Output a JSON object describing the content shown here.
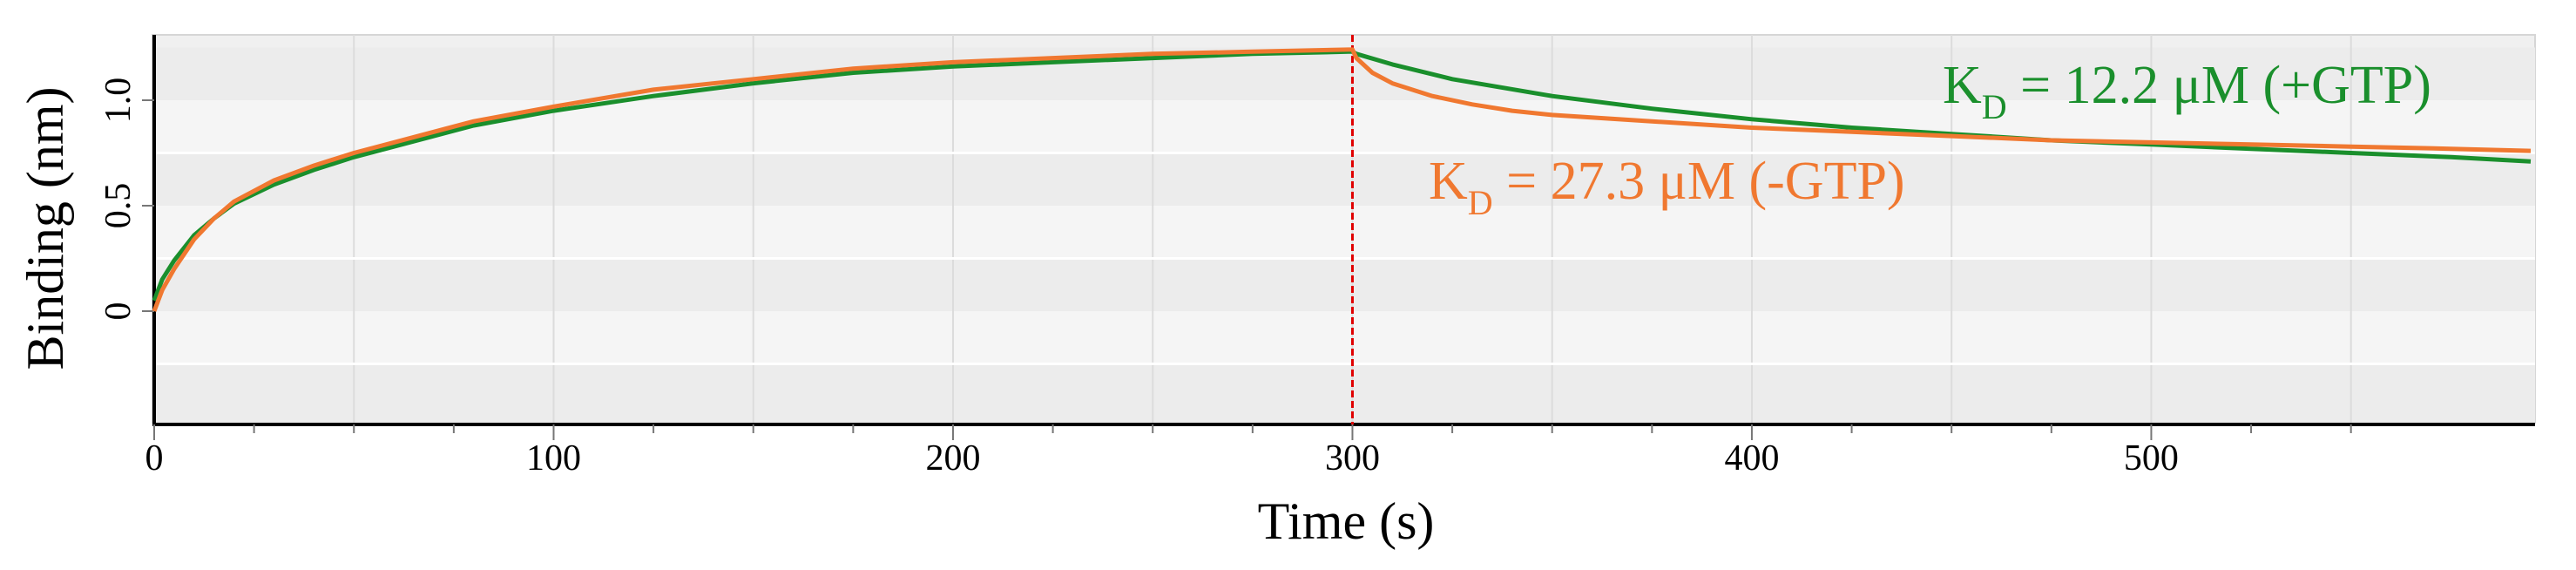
{
  "chart_data": {
    "type": "line",
    "title": "",
    "xlabel": "Time (s)",
    "ylabel": "Binding (nm)",
    "xlim": [
      0,
      595
    ],
    "ylim": [
      -0.55,
      1.25
    ],
    "x_ticks": [
      0,
      100,
      200,
      300,
      400,
      500
    ],
    "y_ticks": [
      0,
      0.5,
      1.0
    ],
    "x_tick_labels": [
      "0",
      "100",
      "200",
      "300",
      "400",
      "500"
    ],
    "y_tick_labels": [
      "0",
      "0.5",
      "1.0"
    ],
    "grid": true,
    "legend": "none",
    "marker_line_x": 300,
    "colors": {
      "plus_gtp": "#1a8f2c",
      "minus_gtp": "#f07830",
      "marker": "#e00000",
      "plot_bg": "#f0f0f0"
    },
    "series": [
      {
        "key": "plus_gtp",
        "color": "#1a8f2c",
        "x": [
          0,
          2,
          5,
          10,
          15,
          20,
          30,
          40,
          50,
          60,
          80,
          100,
          125,
          150,
          175,
          200,
          225,
          250,
          275,
          299,
          300,
          301,
          310,
          325,
          350,
          375,
          400,
          425,
          450,
          475,
          500,
          525,
          550,
          575,
          595
        ],
        "y": [
          0.05,
          0.15,
          0.24,
          0.36,
          0.44,
          0.51,
          0.6,
          0.67,
          0.73,
          0.78,
          0.88,
          0.95,
          1.02,
          1.08,
          1.13,
          1.16,
          1.18,
          1.2,
          1.22,
          1.23,
          1.23,
          1.22,
          1.17,
          1.1,
          1.02,
          0.96,
          0.91,
          0.87,
          0.84,
          0.81,
          0.79,
          0.77,
          0.75,
          0.73,
          0.71
        ]
      },
      {
        "key": "minus_gtp",
        "color": "#f07830",
        "x": [
          0,
          2,
          5,
          10,
          15,
          20,
          30,
          40,
          50,
          60,
          80,
          100,
          125,
          150,
          175,
          200,
          225,
          250,
          275,
          299,
          300,
          301,
          305,
          310,
          320,
          330,
          340,
          350,
          375,
          400,
          425,
          450,
          475,
          500,
          525,
          550,
          575,
          595
        ],
        "y": [
          0.0,
          0.1,
          0.2,
          0.34,
          0.44,
          0.52,
          0.62,
          0.69,
          0.75,
          0.8,
          0.9,
          0.97,
          1.05,
          1.1,
          1.15,
          1.18,
          1.2,
          1.22,
          1.23,
          1.24,
          1.24,
          1.2,
          1.13,
          1.08,
          1.02,
          0.98,
          0.95,
          0.93,
          0.9,
          0.87,
          0.85,
          0.83,
          0.81,
          0.8,
          0.79,
          0.78,
          0.77,
          0.76
        ]
      }
    ],
    "annotations": [
      {
        "key": "plus_gtp",
        "k": "K",
        "sub": "D",
        "text": " = 12.2 μM (+GTP)",
        "color": "#1a8f2c"
      },
      {
        "key": "minus_gtp",
        "k": "K",
        "sub": "D",
        "text": " = 27.3 μM (-GTP)",
        "color": "#f07830"
      }
    ]
  }
}
